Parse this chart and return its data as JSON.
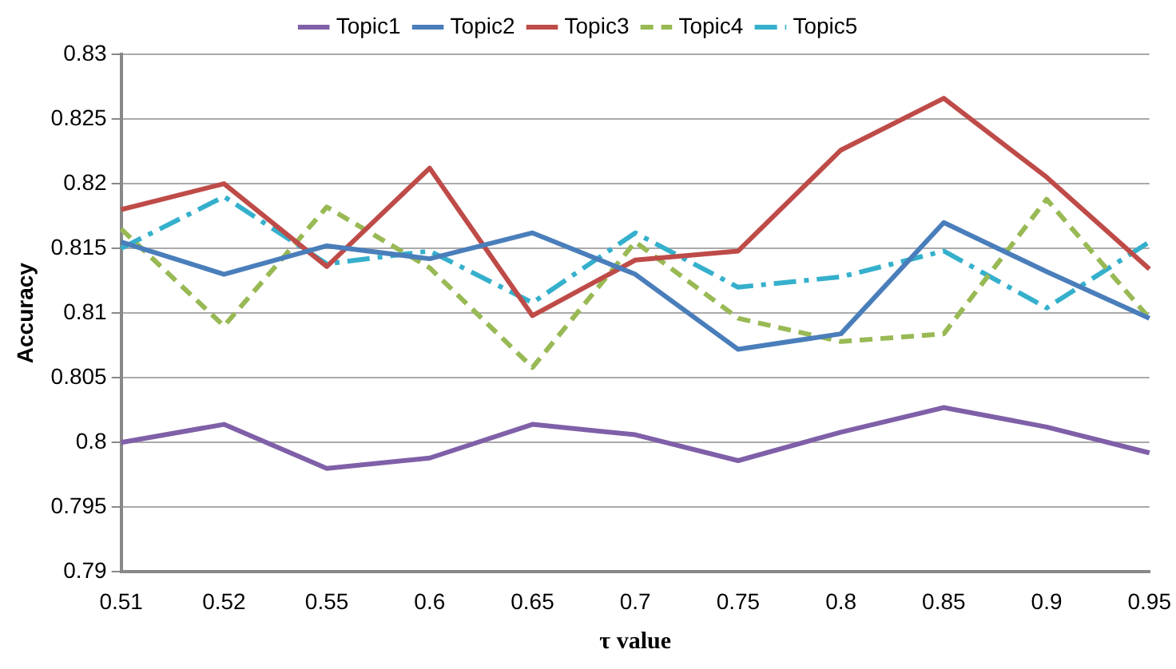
{
  "chart_data": {
    "type": "line",
    "xlabel": "τ value",
    "ylabel": "Accuracy",
    "categories": [
      "0.51",
      "0.52",
      "0.55",
      "0.6",
      "0.65",
      "0.7",
      "0.75",
      "0.8",
      "0.85",
      "0.9",
      "0.95"
    ],
    "series": [
      {
        "name": "Topic1",
        "color": "#7f60a8",
        "line_style": "solid",
        "values": [
          0.8,
          0.8014,
          0.798,
          0.7988,
          0.8014,
          0.8006,
          0.7986,
          0.8008,
          0.8027,
          0.8012,
          0.7992
        ]
      },
      {
        "name": "Topic2",
        "color": "#4a7ebb",
        "line_style": "solid",
        "values": [
          0.8155,
          0.813,
          0.8152,
          0.8142,
          0.8162,
          0.813,
          0.8072,
          0.8084,
          0.817,
          0.8132,
          0.8096
        ]
      },
      {
        "name": "Topic3",
        "color": "#be4b48",
        "line_style": "solid",
        "values": [
          0.818,
          0.82,
          0.8136,
          0.8212,
          0.8098,
          0.8141,
          0.8148,
          0.8226,
          0.8266,
          0.8205,
          0.8134
        ]
      },
      {
        "name": "Topic4",
        "color": "#98b954",
        "line_style": "dashed",
        "values": [
          0.8165,
          0.809,
          0.8182,
          0.8135,
          0.8058,
          0.8155,
          0.8096,
          0.8078,
          0.8084,
          0.8188,
          0.8096
        ]
      },
      {
        "name": "Topic5",
        "color": "#35b0cc",
        "line_style": "dashdot",
        "values": [
          0.815,
          0.819,
          0.8138,
          0.8148,
          0.8108,
          0.8162,
          0.812,
          0.8128,
          0.8148,
          0.8104,
          0.8155
        ]
      }
    ],
    "ylim": [
      0.79,
      0.83
    ],
    "yticks": [
      0.79,
      0.795,
      0.8,
      0.805,
      0.81,
      0.815,
      0.82,
      0.825,
      0.83
    ],
    "grid": "y",
    "legend": "top",
    "marker": "none"
  }
}
